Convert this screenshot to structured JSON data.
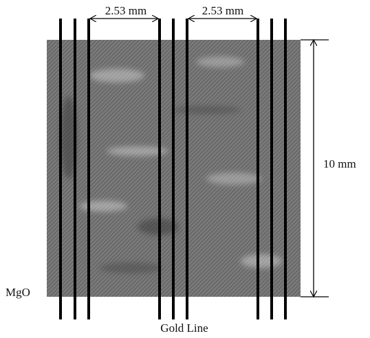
{
  "labels": {
    "spacing_left": "2.53 mm",
    "spacing_right": "2.53 mm",
    "height": "10 mm",
    "substrate": "MgO",
    "caption": "Gold Line"
  }
}
